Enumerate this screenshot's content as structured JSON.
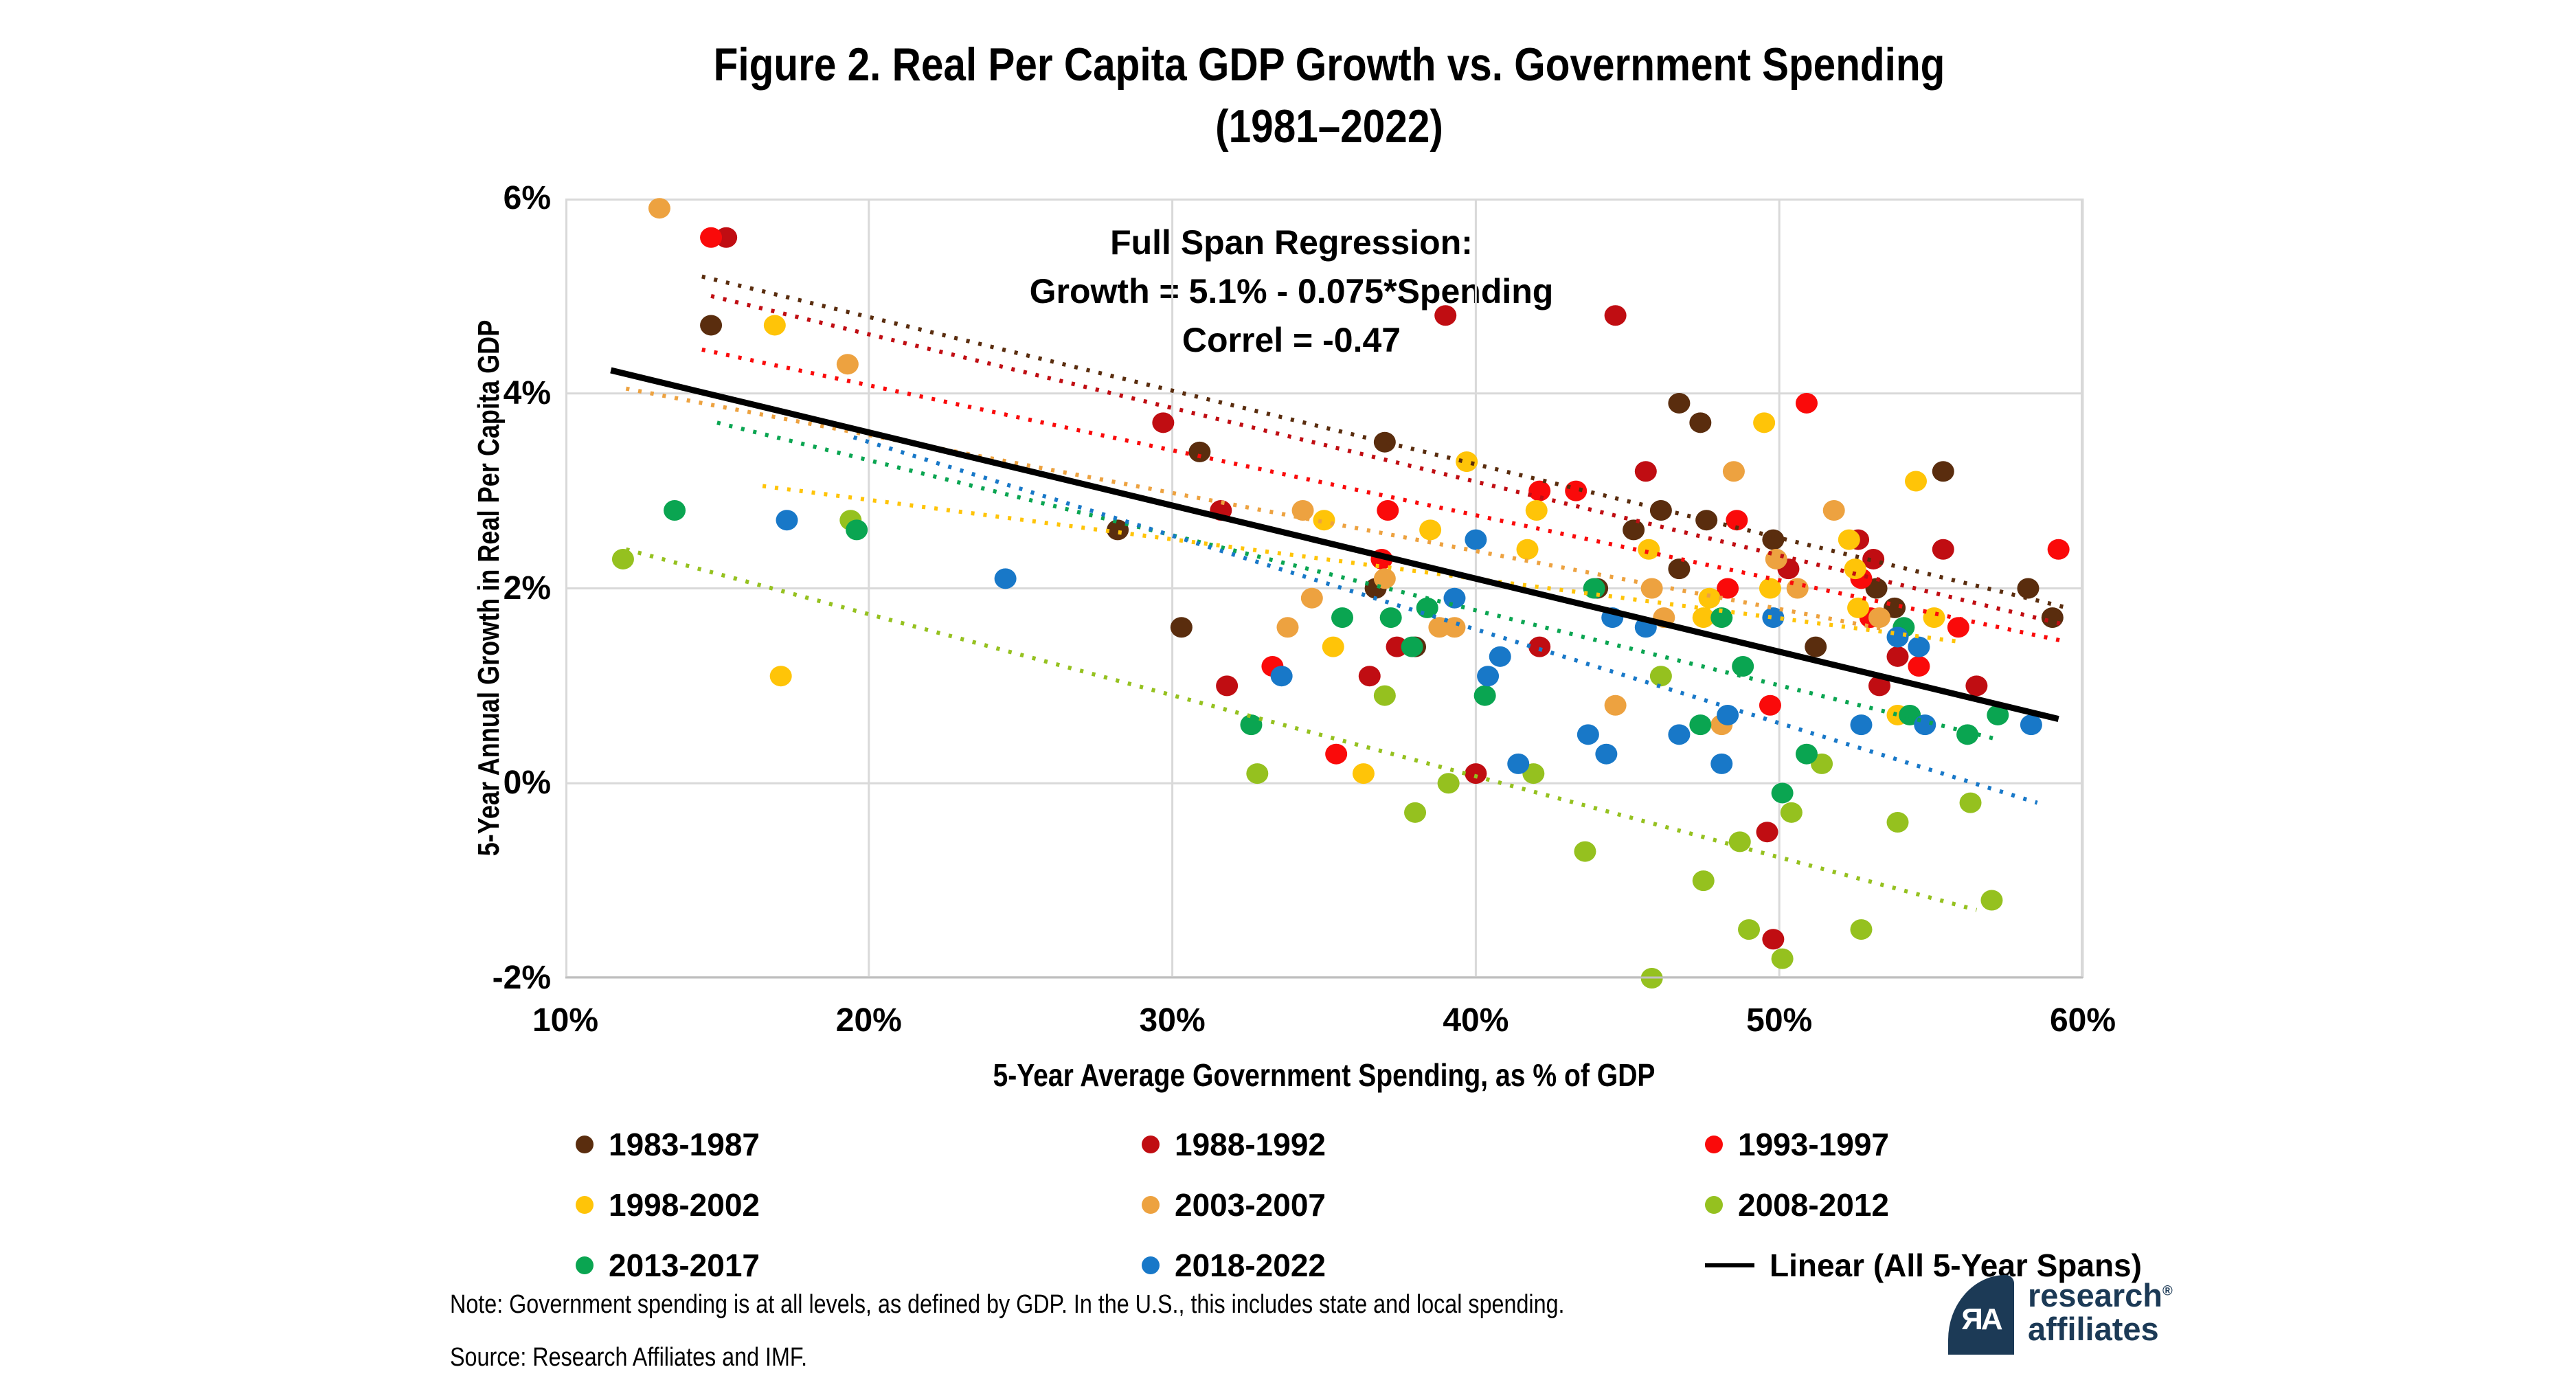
{
  "title": {
    "line1": "Figure 2. Real Per Capita GDP Growth vs. Government Spending",
    "line2": "(1981–2022)"
  },
  "annotation": {
    "line1": "Full Span Regression:",
    "line2": "Growth = 5.1% - 0.075*Spending",
    "line3": "Correl = -0.47"
  },
  "axes": {
    "x": {
      "label": "5-Year Average Government Spending, as % of GDP",
      "min": 10,
      "max": 60,
      "ticks": [
        10,
        20,
        30,
        40,
        50,
        60
      ],
      "tick_labels": [
        "10%",
        "20%",
        "30%",
        "40%",
        "50%",
        "60%"
      ],
      "gridlines": [
        20,
        30,
        40,
        50,
        60
      ]
    },
    "y": {
      "label": "5-Year Annual Growth in Real Per Capita GDP",
      "min": -2,
      "max": 6,
      "ticks": [
        6,
        4,
        2,
        0,
        -2
      ],
      "tick_labels": [
        "6%",
        "4%",
        "2%",
        "0%",
        "-2%"
      ],
      "gridlines": [
        4,
        2,
        0
      ]
    }
  },
  "chart_data": {
    "type": "scatter",
    "title": "Figure 2. Real Per Capita GDP Growth vs. Government Spending (1981–2022)",
    "xlabel": "5-Year Average Government Spending, as % of GDP",
    "ylabel": "5-Year Annual Growth in Real Per Capita GDP",
    "xlim": [
      10,
      60
    ],
    "ylim": [
      -2,
      6
    ],
    "grid": true,
    "legend_position": "bottom",
    "grid_color": "#D9D9D9",
    "axis_color": "#BFBFBF",
    "regression": {
      "label": "Linear (All 5-Year Spans)",
      "equation": "Growth = 5.1% - 0.075*Spending",
      "intercept": 5.1,
      "slope": -0.075,
      "correlation": -0.47,
      "color": "#000000",
      "x_range": [
        11.5,
        59.2
      ]
    },
    "series": [
      {
        "name": "1983-1987",
        "color": "#5A2D0E",
        "trend": {
          "x1": 14.5,
          "y1": 5.2,
          "x2": 59.5,
          "y2": 1.8
        },
        "points": [
          [
            14.8,
            4.7
          ],
          [
            28.2,
            2.6
          ],
          [
            30.3,
            1.6
          ],
          [
            30.9,
            3.4
          ],
          [
            36.7,
            2.0
          ],
          [
            37.0,
            3.5
          ],
          [
            38.0,
            1.4
          ],
          [
            44.0,
            2.0
          ],
          [
            45.2,
            2.6
          ],
          [
            46.1,
            2.8
          ],
          [
            46.7,
            3.9
          ],
          [
            46.7,
            2.2
          ],
          [
            47.4,
            3.7
          ],
          [
            47.6,
            2.7
          ],
          [
            49.8,
            2.5
          ],
          [
            51.2,
            1.4
          ],
          [
            53.2,
            2.0
          ],
          [
            53.8,
            1.8
          ],
          [
            55.4,
            3.2
          ],
          [
            58.2,
            2.0
          ],
          [
            59.0,
            1.7
          ]
        ]
      },
      {
        "name": "1988-1992",
        "color": "#C00D12",
        "trend": {
          "x1": 14.8,
          "y1": 5.0,
          "x2": 59.5,
          "y2": 1.62
        },
        "points": [
          [
            15.3,
            5.6
          ],
          [
            29.7,
            3.7
          ],
          [
            31.6,
            2.8
          ],
          [
            31.8,
            1.0
          ],
          [
            36.5,
            1.1
          ],
          [
            37.4,
            1.4
          ],
          [
            39.0,
            4.8
          ],
          [
            40.0,
            0.1
          ],
          [
            42.1,
            1.4
          ],
          [
            44.6,
            4.8
          ],
          [
            45.6,
            3.2
          ],
          [
            49.6,
            -0.5
          ],
          [
            49.8,
            -1.6
          ],
          [
            50.3,
            2.2
          ],
          [
            52.6,
            2.5
          ],
          [
            53.1,
            2.3
          ],
          [
            53.3,
            1.0
          ],
          [
            53.9,
            1.3
          ],
          [
            55.4,
            2.4
          ],
          [
            56.5,
            1.0
          ]
        ]
      },
      {
        "name": "1993-1997",
        "color": "#FA0A0A",
        "trend": {
          "x1": 14.5,
          "y1": 4.45,
          "x2": 59.5,
          "y2": 1.45
        },
        "points": [
          [
            14.8,
            5.6
          ],
          [
            33.3,
            1.2
          ],
          [
            35.4,
            0.3
          ],
          [
            36.9,
            2.3
          ],
          [
            37.1,
            2.8
          ],
          [
            42.1,
            3.0
          ],
          [
            43.3,
            3.0
          ],
          [
            48.3,
            2.0
          ],
          [
            48.6,
            2.7
          ],
          [
            49.7,
            0.8
          ],
          [
            50.9,
            3.9
          ],
          [
            52.7,
            2.1
          ],
          [
            53.0,
            1.7
          ],
          [
            54.6,
            1.2
          ],
          [
            55.9,
            1.6
          ],
          [
            59.2,
            2.4
          ]
        ]
      },
      {
        "name": "1998-2002",
        "color": "#FFC408",
        "trend": {
          "x1": 16.5,
          "y1": 3.05,
          "x2": 56.0,
          "y2": 1.45
        },
        "points": [
          [
            16.9,
            4.7
          ],
          [
            17.1,
            1.1
          ],
          [
            35.0,
            2.7
          ],
          [
            35.3,
            1.4
          ],
          [
            36.3,
            0.1
          ],
          [
            38.5,
            2.6
          ],
          [
            39.7,
            3.3
          ],
          [
            41.7,
            2.4
          ],
          [
            42.0,
            2.8
          ],
          [
            45.7,
            2.4
          ],
          [
            47.5,
            1.7
          ],
          [
            47.7,
            1.9
          ],
          [
            49.5,
            3.7
          ],
          [
            49.7,
            2.0
          ],
          [
            52.3,
            2.5
          ],
          [
            52.5,
            2.2
          ],
          [
            52.6,
            1.8
          ],
          [
            53.9,
            0.7
          ],
          [
            54.5,
            3.1
          ],
          [
            55.1,
            1.7
          ]
        ]
      },
      {
        "name": "2003-2007",
        "color": "#EDA240",
        "trend": {
          "x1": 12.0,
          "y1": 4.05,
          "x2": 53.5,
          "y2": 1.58
        },
        "points": [
          [
            13.1,
            5.9
          ],
          [
            19.3,
            4.3
          ],
          [
            33.8,
            1.6
          ],
          [
            34.3,
            2.8
          ],
          [
            34.6,
            1.9
          ],
          [
            37.0,
            2.1
          ],
          [
            38.8,
            1.6
          ],
          [
            39.3,
            1.6
          ],
          [
            44.6,
            0.8
          ],
          [
            45.8,
            2.0
          ],
          [
            46.2,
            1.7
          ],
          [
            48.1,
            0.6
          ],
          [
            48.5,
            3.2
          ],
          [
            49.9,
            2.3
          ],
          [
            50.6,
            2.0
          ],
          [
            51.8,
            2.8
          ],
          [
            53.3,
            1.7
          ]
        ]
      },
      {
        "name": "2008-2012",
        "color": "#95C11F",
        "trend": {
          "x1": 12.0,
          "y1": 2.4,
          "x2": 56.5,
          "y2": -1.3
        },
        "points": [
          [
            11.9,
            2.3
          ],
          [
            19.4,
            2.7
          ],
          [
            32.8,
            0.1
          ],
          [
            37.0,
            0.9
          ],
          [
            38.0,
            -0.3
          ],
          [
            39.1,
            0.0
          ],
          [
            41.9,
            0.1
          ],
          [
            43.6,
            -0.7
          ],
          [
            45.8,
            -2.0
          ],
          [
            46.1,
            1.1
          ],
          [
            47.5,
            -1.0
          ],
          [
            48.7,
            -0.6
          ],
          [
            49.0,
            -1.5
          ],
          [
            50.1,
            -1.8
          ],
          [
            50.4,
            -0.3
          ],
          [
            51.4,
            0.2
          ],
          [
            52.7,
            -1.5
          ],
          [
            53.9,
            -0.4
          ],
          [
            56.3,
            -0.2
          ],
          [
            57.0,
            -1.2
          ]
        ]
      },
      {
        "name": "2013-2017",
        "color": "#0AA551",
        "trend": {
          "x1": 15.0,
          "y1": 3.7,
          "x2": 57.2,
          "y2": 0.45
        },
        "points": [
          [
            13.6,
            2.8
          ],
          [
            19.6,
            2.6
          ],
          [
            32.6,
            0.6
          ],
          [
            35.6,
            1.7
          ],
          [
            37.2,
            1.7
          ],
          [
            37.9,
            1.4
          ],
          [
            38.4,
            1.8
          ],
          [
            40.3,
            0.9
          ],
          [
            43.9,
            2.0
          ],
          [
            47.4,
            0.6
          ],
          [
            48.1,
            1.7
          ],
          [
            48.8,
            1.2
          ],
          [
            50.1,
            -0.1
          ],
          [
            50.9,
            0.3
          ],
          [
            54.1,
            1.6
          ],
          [
            54.3,
            0.7
          ],
          [
            56.2,
            0.5
          ],
          [
            57.2,
            0.7
          ]
        ]
      },
      {
        "name": "2018-2022",
        "color": "#1878C8",
        "trend": {
          "x1": 19.5,
          "y1": 3.55,
          "x2": 58.5,
          "y2": -0.2
        },
        "points": [
          [
            17.3,
            2.7
          ],
          [
            24.5,
            2.1
          ],
          [
            33.6,
            1.1
          ],
          [
            39.3,
            1.9
          ],
          [
            40.0,
            2.5
          ],
          [
            40.4,
            1.1
          ],
          [
            40.8,
            1.3
          ],
          [
            41.4,
            0.2
          ],
          [
            43.7,
            0.5
          ],
          [
            44.3,
            0.3
          ],
          [
            44.5,
            1.7
          ],
          [
            45.6,
            1.6
          ],
          [
            46.7,
            0.5
          ],
          [
            48.1,
            0.2
          ],
          [
            48.3,
            0.7
          ],
          [
            49.8,
            1.7
          ],
          [
            52.7,
            0.6
          ],
          [
            53.9,
            1.5
          ],
          [
            54.6,
            1.4
          ],
          [
            54.8,
            0.6
          ],
          [
            58.3,
            0.6
          ]
        ]
      }
    ]
  },
  "legend": {
    "items": [
      {
        "label": "1983-1987",
        "color": "#5A2D0E",
        "type": "dot"
      },
      {
        "label": "1988-1992",
        "color": "#C00D12",
        "type": "dot"
      },
      {
        "label": "1993-1997",
        "color": "#FA0A0A",
        "type": "dot"
      },
      {
        "label": "1998-2002",
        "color": "#FFC408",
        "type": "dot"
      },
      {
        "label": "2003-2007",
        "color": "#EDA240",
        "type": "dot"
      },
      {
        "label": "2008-2012",
        "color": "#95C11F",
        "type": "dot"
      },
      {
        "label": "2013-2017",
        "color": "#0AA551",
        "type": "dot"
      },
      {
        "label": "2018-2022",
        "color": "#1878C8",
        "type": "dot"
      },
      {
        "label": "Linear (All 5-Year Spans)",
        "color": "#000000",
        "type": "line"
      }
    ]
  },
  "note": "Note: Government spending is at all levels, as defined by GDP. In the U.S., this includes state and local spending.",
  "source": "Source: Research Affiliates and IMF.",
  "logo": {
    "monogram": "ЯA",
    "line1": "research",
    "registered": "®",
    "line2": "affiliates",
    "color": "#1C3A56"
  }
}
